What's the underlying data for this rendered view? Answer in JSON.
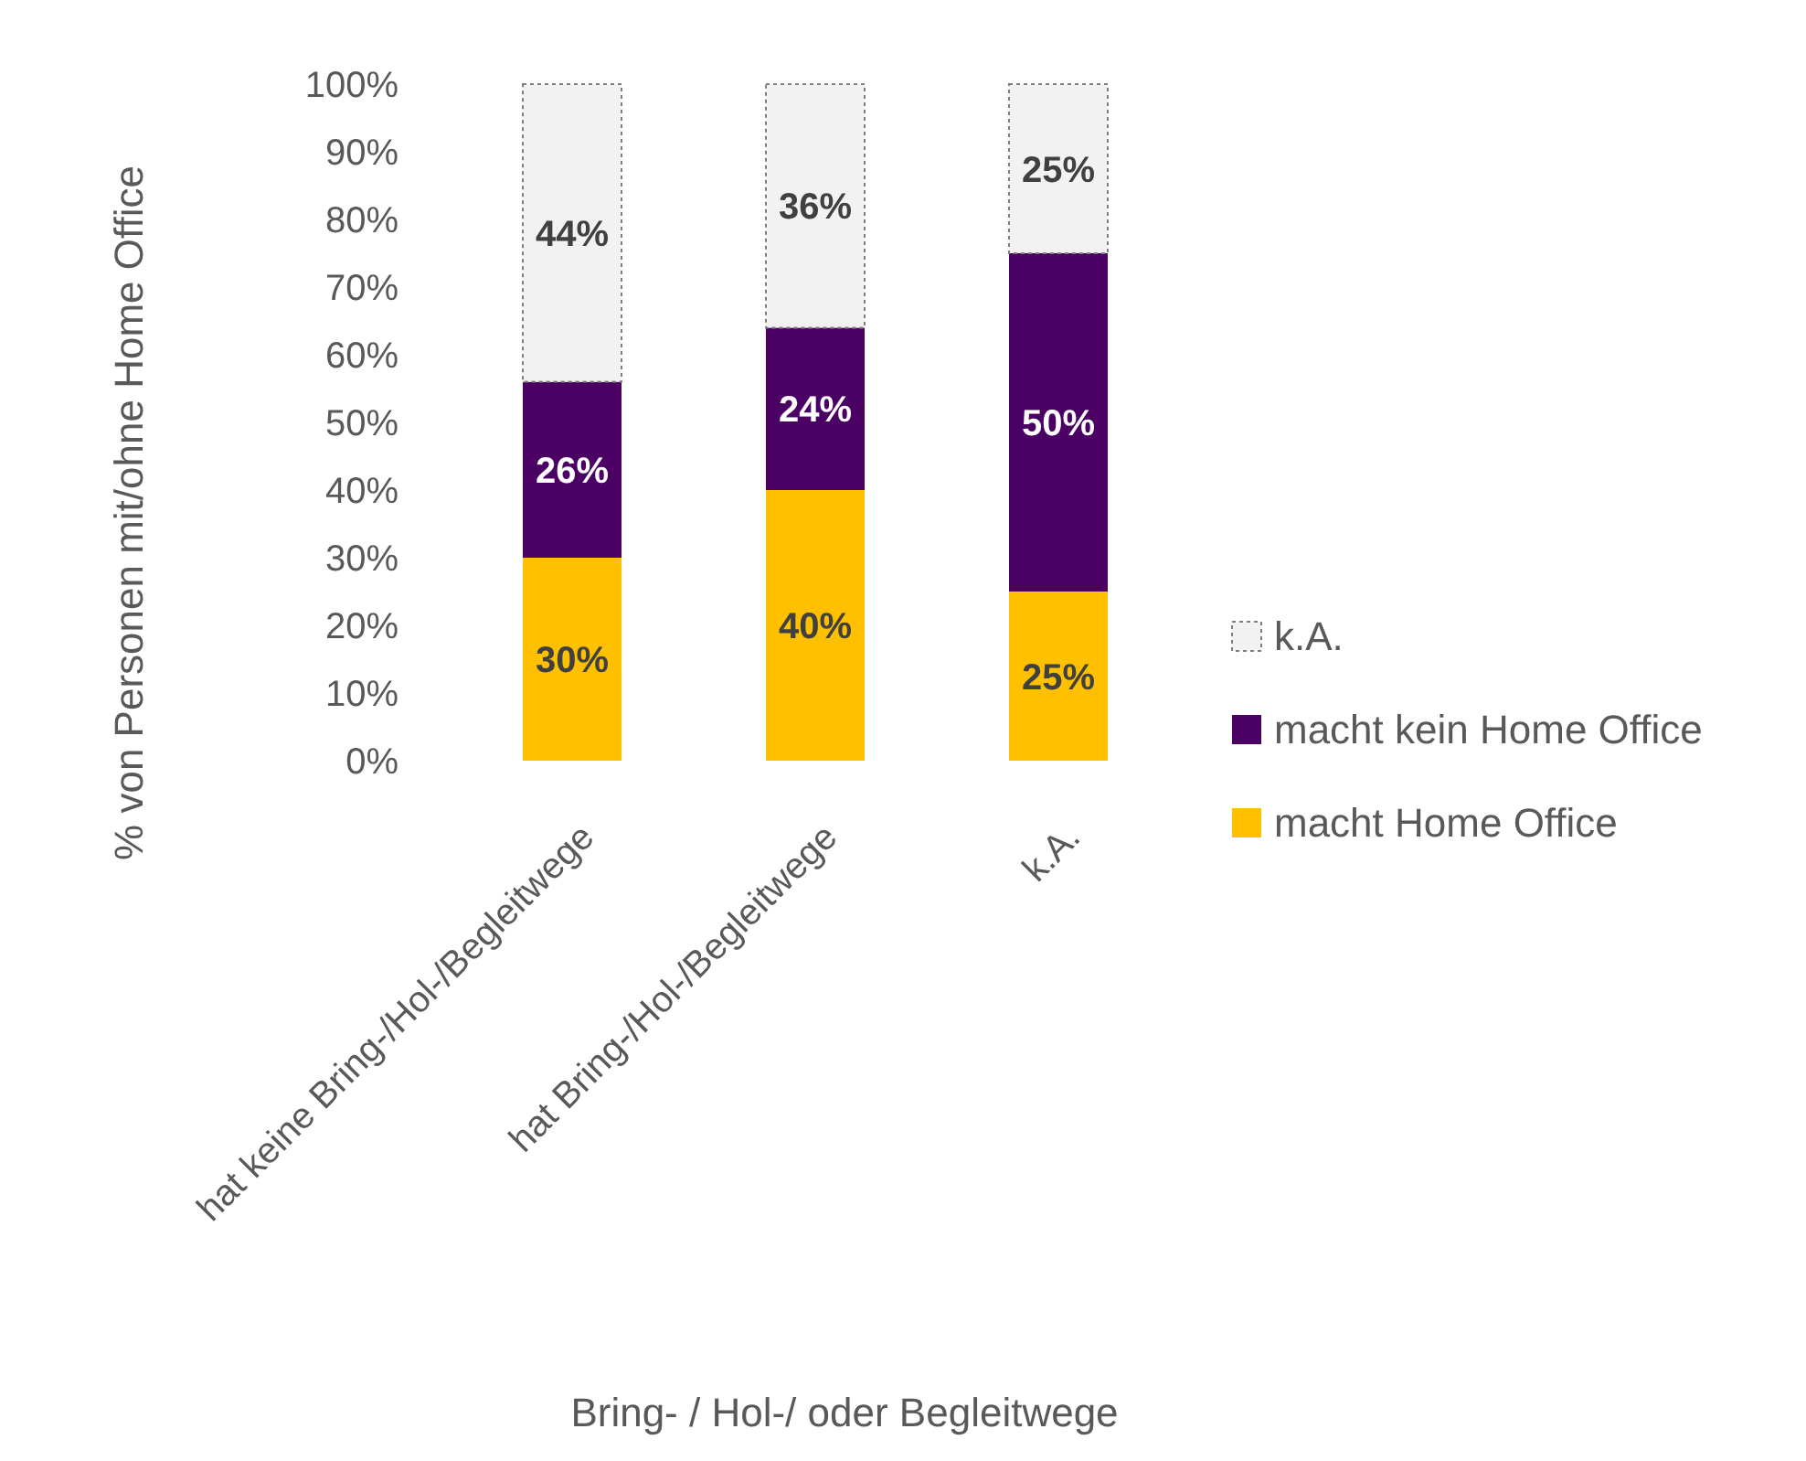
{
  "chart_data": {
    "type": "bar",
    "stacked": true,
    "xlabel": "Bring- / Hol-/ oder Begleitwege",
    "ylabel": "% von Personen mit/ohne Home Office",
    "categories": [
      "hat keine Bring-/Hol-/Begleitwege",
      "hat Bring-/Hol-/Begleitwege",
      "k.A."
    ],
    "series": [
      {
        "name": "macht Home Office",
        "color": "#ffc000",
        "values": [
          30,
          40,
          25
        ],
        "value_labels": [
          "30%",
          "40%",
          "25%"
        ]
      },
      {
        "name": "macht kein Home Office",
        "color": "#4b0064",
        "values": [
          26,
          24,
          50
        ],
        "value_labels": [
          "26%",
          "24%",
          "50%"
        ]
      },
      {
        "name": "k.A.",
        "color": "#f2f2f2",
        "line_style": "dotted",
        "values": [
          44,
          36,
          25
        ],
        "value_labels": [
          "44%",
          "36%",
          "25%"
        ]
      }
    ],
    "ylim": [
      0,
      100
    ],
    "yticks": [
      {
        "value": 0,
        "label": "0%"
      },
      {
        "value": 10,
        "label": "10%"
      },
      {
        "value": 20,
        "label": "20%"
      },
      {
        "value": 30,
        "label": "30%"
      },
      {
        "value": 40,
        "label": "40%"
      },
      {
        "value": 50,
        "label": "50%"
      },
      {
        "value": 60,
        "label": "60%"
      },
      {
        "value": 70,
        "label": "70%"
      },
      {
        "value": 80,
        "label": "80%"
      },
      {
        "value": 90,
        "label": "90%"
      },
      {
        "value": 100,
        "label": "100%"
      }
    ],
    "grid": false,
    "legend": "right"
  }
}
